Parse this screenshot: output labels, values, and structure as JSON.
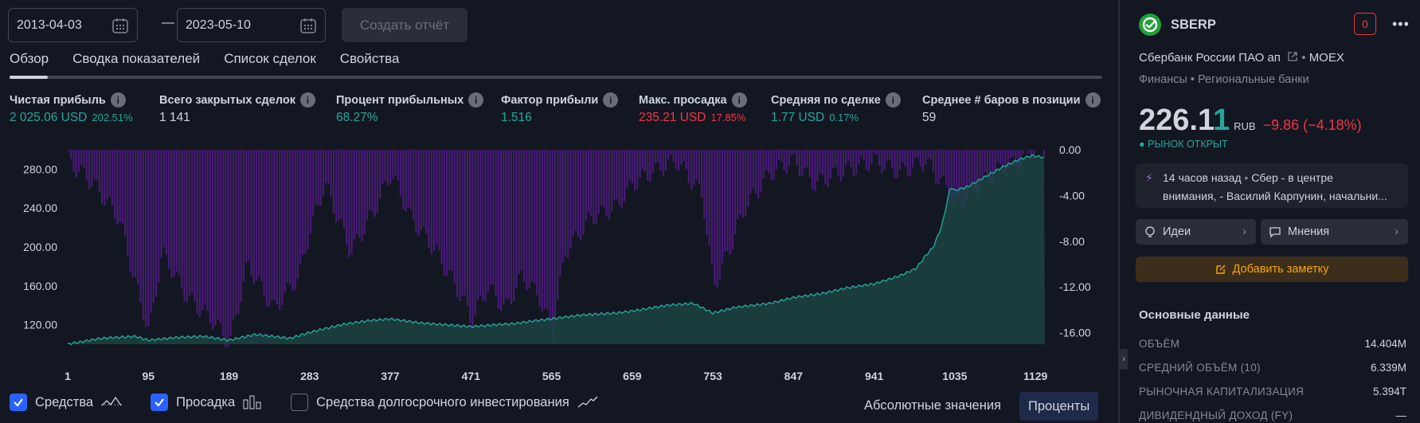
{
  "toolbar": {
    "date_from": "2013-04-03",
    "date_to": "2023-05-10",
    "create_report": "Создать отчёт"
  },
  "tabs": [
    "Обзор",
    "Сводка показателей",
    "Список сделок",
    "Свойства"
  ],
  "metrics": [
    {
      "label": "Чистая прибыль",
      "value": "2 025.06 USD",
      "sub": "202.51%",
      "color": "#26a69a"
    },
    {
      "label": "Всего закрытых сделок",
      "value": "1 141",
      "sub": "",
      "color": "#d1d4dc"
    },
    {
      "label": "Процент прибыльных",
      "value": "68.27%",
      "sub": "",
      "color": "#26a69a"
    },
    {
      "label": "Фактор прибыли",
      "value": "1.516",
      "sub": "",
      "color": "#26a69a"
    },
    {
      "label": "Макс. просадка",
      "value": "235.21 USD",
      "sub": "17.85%",
      "color": "#f23645"
    },
    {
      "label": "Средняя по сделке",
      "value": "1.77 USD",
      "sub": "0.17%",
      "color": "#26a69a"
    },
    {
      "label": "Среднее # баров в позиции",
      "value": "59",
      "sub": "",
      "color": "#d1d4dc"
    }
  ],
  "chart_data": {
    "type": "area",
    "x_ticks": [
      "1",
      "95",
      "189",
      "283",
      "377",
      "471",
      "565",
      "659",
      "753",
      "847",
      "941",
      "1035",
      "1129"
    ],
    "left_ticks": [
      "280.00",
      "240.00",
      "200.00",
      "160.00",
      "120.00"
    ],
    "right_ticks": [
      "0.00",
      "-4.00",
      "-8.00",
      "-12.00",
      "-16.00"
    ],
    "ylim_left": [
      100,
      300
    ],
    "ylim_right": [
      -17,
      0
    ],
    "equity": {
      "x": [
        1,
        40,
        80,
        95,
        130,
        160,
        189,
        220,
        260,
        283,
        320,
        350,
        377,
        410,
        440,
        471,
        500,
        520,
        545,
        565,
        600,
        640,
        659,
        700,
        730,
        753,
        780,
        820,
        847,
        880,
        910,
        941,
        970,
        990,
        1000,
        1010,
        1020,
        1030,
        1035,
        1050,
        1070,
        1090,
        1110,
        1125,
        1140
      ],
      "y": [
        100,
        106,
        108,
        104,
        107,
        108,
        104,
        110,
        106,
        112,
        120,
        124,
        126,
        122,
        120,
        118,
        120,
        121,
        124,
        126,
        130,
        132,
        134,
        140,
        142,
        132,
        138,
        142,
        148,
        152,
        158,
        162,
        170,
        178,
        190,
        200,
        222,
        262,
        258,
        262,
        272,
        282,
        290,
        294,
        292
      ],
      "color": "#26a69a"
    },
    "drawdown": {
      "x": [
        1,
        30,
        60,
        80,
        95,
        110,
        140,
        170,
        189,
        210,
        240,
        270,
        283,
        300,
        330,
        360,
        377,
        400,
        430,
        460,
        471,
        490,
        510,
        530,
        550,
        565,
        580,
        610,
        640,
        659,
        680,
        710,
        740,
        753,
        770,
        790,
        820,
        847,
        870,
        900,
        941,
        970,
        1000,
        1030,
        1035,
        1050,
        1080,
        1110,
        1129,
        1140
      ],
      "y": [
        -1,
        -3,
        -6,
        -12,
        -16,
        -9,
        -13,
        -15,
        -17,
        -10,
        -14,
        -11,
        -7,
        -3,
        -9,
        -5,
        -2,
        -6,
        -9,
        -13,
        -15,
        -12,
        -14,
        -11,
        -13,
        -16,
        -9,
        -6,
        -5,
        -3,
        -2,
        -1,
        -4,
        -12,
        -9,
        -5,
        -2,
        -1,
        -3,
        -2,
        -1,
        -2,
        -1,
        -4,
        -5,
        -4,
        -2,
        -1,
        0,
        0
      ],
      "color": "#4a1b7a"
    }
  },
  "legend": {
    "equity_label": "Средства",
    "drawdown_label": "Просадка",
    "buyhold_label": "Средства долгосрочного инвестирования",
    "abs_label": "Абсолютные значения",
    "pct_label": "Проценты"
  },
  "panel": {
    "symbol": "SBERP",
    "badge": "0",
    "company": "Сбербанк России ПАО ап",
    "exchange": "MOEX",
    "sector": "Финансы",
    "industry": "Региональные банки",
    "price_main": "226.1",
    "price_last": "1",
    "currency": "RUB",
    "change": "−9.86 (−4.18%)",
    "market_status": "РЫНОК ОТКРЫТ",
    "news_line1_time": "14 часов назад",
    "news_line1_text": "Сбер - в центре",
    "news_line2": "внимания, - Василий Карпунин, начальни...",
    "ideas": "Идеи",
    "opinions": "Мнения",
    "add_note": "Добавить заметку",
    "key_data_title": "Основные данные",
    "key_data": [
      {
        "k": "ОБЪЁМ",
        "v": "14.404M"
      },
      {
        "k": "СРЕДНИЙ ОБЪЁМ (10)",
        "v": "6.339M"
      },
      {
        "k": "РЫНОЧНАЯ КАПИТАЛИЗАЦИЯ",
        "v": "5.394T"
      },
      {
        "k": "ДИВИДЕНДНЫЙ ДОХОД (FY)",
        "v": "—"
      }
    ]
  }
}
